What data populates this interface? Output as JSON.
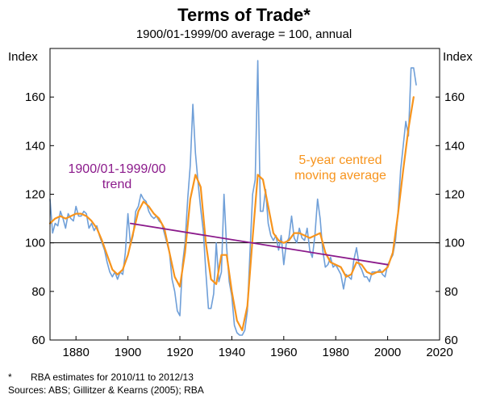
{
  "chart_data": {
    "type": "line",
    "title": "Terms of Trade*",
    "subtitle": "1900/01-1999/00 average = 100, annual",
    "ylabel_left": "Index",
    "ylabel_right": "Index",
    "xlim": [
      1870,
      2020
    ],
    "ylim": [
      60,
      180
    ],
    "x_ticks": [
      1880,
      1900,
      1920,
      1940,
      1960,
      1980,
      2000,
      2020
    ],
    "y_ticks": [
      60,
      80,
      100,
      120,
      140,
      160
    ],
    "reference_line": 100,
    "colors": {
      "raw": "#6f9fd8",
      "moving_average": "#f7941d",
      "trend": "#8b1a8b",
      "reference": "#000000",
      "border": "#000000"
    },
    "annotations": [
      {
        "lines": [
          "1900/01-1999/00",
          "trend"
        ],
        "color": "#8b1a8b"
      },
      {
        "lines": [
          "5-year centred",
          "moving average"
        ],
        "color": "#f7941d"
      }
    ],
    "series": [
      {
        "name": "Terms of Trade",
        "points": [
          [
            1870,
            118
          ],
          [
            1871,
            104
          ],
          [
            1872,
            108
          ],
          [
            1873,
            107
          ],
          [
            1874,
            113
          ],
          [
            1875,
            110
          ],
          [
            1876,
            106
          ],
          [
            1877,
            112
          ],
          [
            1878,
            110
          ],
          [
            1879,
            109
          ],
          [
            1880,
            115
          ],
          [
            1881,
            111
          ],
          [
            1882,
            111
          ],
          [
            1883,
            113
          ],
          [
            1884,
            112
          ],
          [
            1885,
            106
          ],
          [
            1886,
            108
          ],
          [
            1887,
            105
          ],
          [
            1888,
            107
          ],
          [
            1889,
            103
          ],
          [
            1890,
            100
          ],
          [
            1891,
            97
          ],
          [
            1892,
            92
          ],
          [
            1893,
            88
          ],
          [
            1894,
            86
          ],
          [
            1895,
            88
          ],
          [
            1896,
            85
          ],
          [
            1897,
            88
          ],
          [
            1898,
            87
          ],
          [
            1899,
            96
          ],
          [
            1900,
            112
          ],
          [
            1901,
            99
          ],
          [
            1902,
            103
          ],
          [
            1903,
            113
          ],
          [
            1904,
            115
          ],
          [
            1905,
            120
          ],
          [
            1906,
            118
          ],
          [
            1907,
            117
          ],
          [
            1908,
            113
          ],
          [
            1909,
            111
          ],
          [
            1910,
            110
          ],
          [
            1911,
            111
          ],
          [
            1912,
            109
          ],
          [
            1913,
            108
          ],
          [
            1914,
            104
          ],
          [
            1915,
            100
          ],
          [
            1916,
            96
          ],
          [
            1917,
            85
          ],
          [
            1918,
            80
          ],
          [
            1919,
            72
          ],
          [
            1920,
            70
          ],
          [
            1921,
            91
          ],
          [
            1922,
            100
          ],
          [
            1923,
            118
          ],
          [
            1924,
            132
          ],
          [
            1925,
            157
          ],
          [
            1926,
            137
          ],
          [
            1927,
            125
          ],
          [
            1928,
            114
          ],
          [
            1929,
            105
          ],
          [
            1930,
            88
          ],
          [
            1931,
            73
          ],
          [
            1932,
            73
          ],
          [
            1933,
            79
          ],
          [
            1934,
            100
          ],
          [
            1935,
            84
          ],
          [
            1936,
            88
          ],
          [
            1937,
            120
          ],
          [
            1938,
            98
          ],
          [
            1939,
            84
          ],
          [
            1940,
            78
          ],
          [
            1941,
            66
          ],
          [
            1942,
            63
          ],
          [
            1943,
            62
          ],
          [
            1944,
            62
          ],
          [
            1945,
            64
          ],
          [
            1946,
            72
          ],
          [
            1947,
            96
          ],
          [
            1948,
            120
          ],
          [
            1949,
            126
          ],
          [
            1950,
            175
          ],
          [
            1951,
            113
          ],
          [
            1952,
            113
          ],
          [
            1953,
            122
          ],
          [
            1954,
            108
          ],
          [
            1955,
            103
          ],
          [
            1956,
            101
          ],
          [
            1957,
            103
          ],
          [
            1958,
            97
          ],
          [
            1959,
            103
          ],
          [
            1960,
            91
          ],
          [
            1961,
            100
          ],
          [
            1962,
            102
          ],
          [
            1963,
            111
          ],
          [
            1964,
            102
          ],
          [
            1965,
            100
          ],
          [
            1966,
            106
          ],
          [
            1967,
            102
          ],
          [
            1968,
            101
          ],
          [
            1969,
            106
          ],
          [
            1970,
            97
          ],
          [
            1971,
            94
          ],
          [
            1972,
            103
          ],
          [
            1973,
            118
          ],
          [
            1974,
            110
          ],
          [
            1975,
            97
          ],
          [
            1976,
            90
          ],
          [
            1977,
            91
          ],
          [
            1978,
            94
          ],
          [
            1979,
            90
          ],
          [
            1980,
            91
          ],
          [
            1981,
            89
          ],
          [
            1982,
            87
          ],
          [
            1983,
            81
          ],
          [
            1984,
            87
          ],
          [
            1985,
            86
          ],
          [
            1986,
            85
          ],
          [
            1987,
            93
          ],
          [
            1988,
            98
          ],
          [
            1989,
            91
          ],
          [
            1990,
            89
          ],
          [
            1991,
            86
          ],
          [
            1992,
            86
          ],
          [
            1993,
            84
          ],
          [
            1994,
            88
          ],
          [
            1995,
            88
          ],
          [
            1996,
            88
          ],
          [
            1997,
            89
          ],
          [
            1998,
            87
          ],
          [
            1999,
            86
          ],
          [
            2000,
            91
          ],
          [
            2001,
            93
          ],
          [
            2002,
            95
          ],
          [
            2003,
            101
          ],
          [
            2004,
            113
          ],
          [
            2005,
            130
          ],
          [
            2006,
            140
          ],
          [
            2007,
            150
          ],
          [
            2008,
            144
          ],
          [
            2009,
            172
          ],
          [
            2010,
            172
          ],
          [
            2011,
            165
          ]
        ]
      },
      {
        "name": "5-year centred moving average",
        "points": [
          [
            1870,
            108
          ],
          [
            1872,
            110
          ],
          [
            1874,
            111
          ],
          [
            1876,
            110
          ],
          [
            1878,
            111
          ],
          [
            1880,
            112
          ],
          [
            1882,
            112
          ],
          [
            1884,
            111
          ],
          [
            1886,
            109
          ],
          [
            1888,
            106
          ],
          [
            1890,
            101
          ],
          [
            1892,
            95
          ],
          [
            1894,
            89
          ],
          [
            1896,
            87
          ],
          [
            1898,
            89
          ],
          [
            1900,
            95
          ],
          [
            1902,
            104
          ],
          [
            1904,
            113
          ],
          [
            1906,
            117
          ],
          [
            1908,
            115
          ],
          [
            1910,
            112
          ],
          [
            1912,
            110
          ],
          [
            1914,
            106
          ],
          [
            1916,
            96
          ],
          [
            1918,
            86
          ],
          [
            1920,
            82
          ],
          [
            1922,
            96
          ],
          [
            1924,
            118
          ],
          [
            1926,
            128
          ],
          [
            1928,
            123
          ],
          [
            1930,
            100
          ],
          [
            1932,
            85
          ],
          [
            1934,
            83
          ],
          [
            1936,
            95
          ],
          [
            1938,
            95
          ],
          [
            1940,
            80
          ],
          [
            1942,
            68
          ],
          [
            1944,
            64
          ],
          [
            1946,
            74
          ],
          [
            1948,
            102
          ],
          [
            1950,
            128
          ],
          [
            1952,
            126
          ],
          [
            1954,
            115
          ],
          [
            1956,
            104
          ],
          [
            1958,
            101
          ],
          [
            1960,
            100
          ],
          [
            1962,
            101
          ],
          [
            1964,
            104
          ],
          [
            1966,
            104
          ],
          [
            1968,
            103
          ],
          [
            1970,
            102
          ],
          [
            1972,
            103
          ],
          [
            1974,
            104
          ],
          [
            1976,
            96
          ],
          [
            1978,
            92
          ],
          [
            1980,
            91
          ],
          [
            1982,
            90
          ],
          [
            1984,
            86
          ],
          [
            1986,
            87
          ],
          [
            1988,
            92
          ],
          [
            1990,
            91
          ],
          [
            1992,
            88
          ],
          [
            1994,
            87
          ],
          [
            1996,
            88
          ],
          [
            1998,
            88
          ],
          [
            2000,
            90
          ],
          [
            2002,
            96
          ],
          [
            2004,
            112
          ],
          [
            2006,
            130
          ],
          [
            2008,
            147
          ],
          [
            2010,
            160
          ]
        ]
      },
      {
        "name": "1900/01-1999/00 trend",
        "points": [
          [
            1901,
            108
          ],
          [
            2000,
            91
          ]
        ]
      }
    ]
  },
  "footnotes": {
    "star_mark": "*",
    "note": "RBA estimates for 2010/11 to 2012/13",
    "sources": "Sources: ABS; Gillitzer & Kearns (2005); RBA"
  }
}
